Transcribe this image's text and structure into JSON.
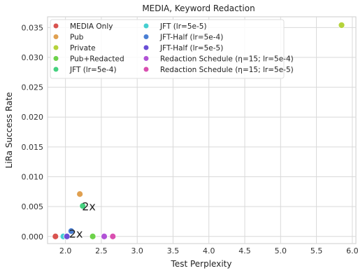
{
  "chart_data": {
    "type": "scatter",
    "title": "MEDIA, Keyword Redaction",
    "xlabel": "Test Perplexity",
    "ylabel": "LiRa Success Rate",
    "xlim": [
      1.75,
      6.05
    ],
    "ylim": [
      -0.0012,
      0.0368
    ],
    "xticks": [
      "2.0",
      "2.5",
      "3.0",
      "3.5",
      "4.0",
      "4.5",
      "5.0",
      "5.5",
      "6.0"
    ],
    "xtick_values": [
      2.0,
      2.5,
      3.0,
      3.5,
      4.0,
      4.5,
      5.0,
      5.5,
      6.0
    ],
    "yticks": [
      "0.000",
      "0.005",
      "0.010",
      "0.015",
      "0.020",
      "0.025",
      "0.030",
      "0.035"
    ],
    "ytick_values": [
      0.0,
      0.005,
      0.01,
      0.015,
      0.02,
      0.025,
      0.03,
      0.035
    ],
    "grid": true,
    "legend_position": "top-left",
    "series": [
      {
        "name": "MEDIA Only",
        "color": "#d9534f",
        "points": [
          [
            1.86,
            0.0
          ]
        ]
      },
      {
        "name": "Pub",
        "color": "#e0a050",
        "points": [
          [
            2.2,
            0.0071
          ]
        ]
      },
      {
        "name": "Private",
        "color": "#b5d33b",
        "points": [
          [
            5.85,
            0.0354
          ]
        ]
      },
      {
        "name": "Pub+Redacted",
        "color": "#6dd24a",
        "points": [
          [
            2.38,
            0.0
          ]
        ]
      },
      {
        "name": "JFT (lr=5e-4)",
        "color": "#45d17f",
        "points": [
          [
            2.24,
            0.0051
          ]
        ]
      },
      {
        "name": "JFT (lr=5e-5)",
        "color": "#45cfd0",
        "points": [
          [
            1.97,
            0.0
          ]
        ]
      },
      {
        "name": "JFT-Half (lr=5e-4)",
        "color": "#4a7fd4",
        "points": [
          [
            2.08,
            0.0009
          ]
        ]
      },
      {
        "name": "JFT-Half (lr=5e-5)",
        "color": "#6a4fd6",
        "points": [
          [
            2.02,
            0.0
          ]
        ]
      },
      {
        "name": "Redaction Schedule (η=15; lr=5e-4)",
        "color": "#b153d6",
        "points": [
          [
            2.54,
            0.0
          ]
        ]
      },
      {
        "name": "Redaction Schedule (η=15; lr=5e-5)",
        "color": "#d94fb0",
        "points": [
          [
            2.66,
            0.0
          ]
        ]
      }
    ],
    "annotations": [
      {
        "text": "2x",
        "x": 2.24,
        "y": 0.0051
      },
      {
        "text": "2x",
        "x": 2.06,
        "y": 0.0005
      }
    ]
  }
}
